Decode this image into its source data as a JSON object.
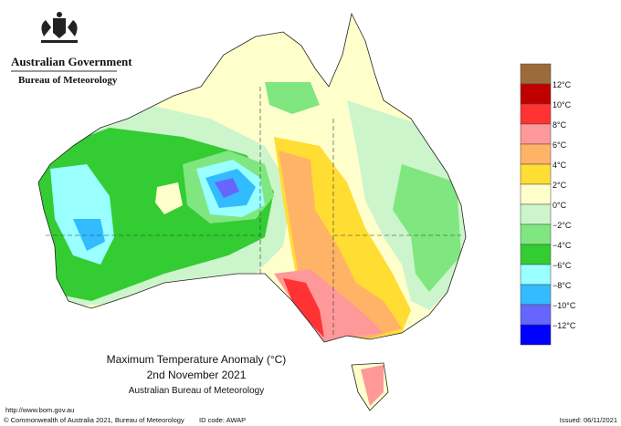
{
  "header": {
    "government": "Australian Government",
    "agency": "Bureau of Meteorology"
  },
  "title": {
    "line1": "Maximum Temperature Anomaly (°C)",
    "line2": "2nd November 2021",
    "line3": "Australian Bureau of Meteorology"
  },
  "legend": {
    "colors": [
      "#9c6b3c",
      "#c00000",
      "#ff3333",
      "#ff9999",
      "#ffb366",
      "#ffdd33",
      "#ffffcc",
      "#ccf5cc",
      "#80e680",
      "#33cc33",
      "#99ffff",
      "#33bbff",
      "#6666ff",
      "#0000ff"
    ],
    "labels": [
      "12°C",
      "10°C",
      "8°C",
      "6°C",
      "4°C",
      "2°C",
      "0°C",
      "−2°C",
      "−4°C",
      "−6°C",
      "−8°C",
      "−10°C",
      "−12°C"
    ]
  },
  "footer": {
    "url": "http://www.bom.gov.au",
    "copyright": "© Commonwealth of Australia 2021, Bureau of Meteorology",
    "id_code": "ID code: AWAP",
    "issued": "Issued: 06/11/2021"
  }
}
